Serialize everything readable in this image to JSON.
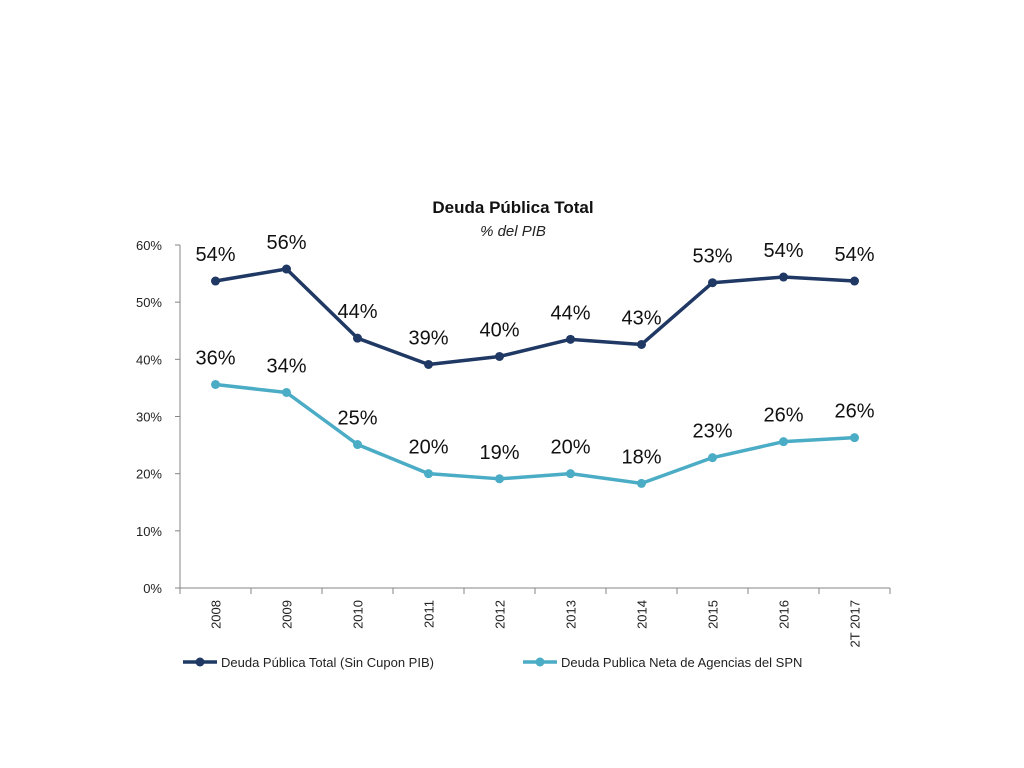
{
  "chart_data": {
    "type": "line",
    "title": "Deuda Pública Total",
    "subtitle": "% del PIB",
    "categories": [
      "2008",
      "2009",
      "2010",
      "2011",
      "2012",
      "2013",
      "2014",
      "2015",
      "2016",
      "2T 2017"
    ],
    "y_ticks": [
      "0%",
      "10%",
      "20%",
      "30%",
      "40%",
      "50%",
      "60%"
    ],
    "ylim": [
      0,
      60
    ],
    "grid": false,
    "legend_position": "bottom",
    "series": [
      {
        "name": "Deuda Pública Total (Sin Cupon PIB)",
        "color": "#1f3864",
        "values": [
          53.7,
          55.8,
          43.7,
          39.1,
          40.5,
          43.5,
          42.6,
          53.4,
          54.4,
          53.7
        ],
        "labels": [
          "54%",
          "56%",
          "44%",
          "39%",
          "40%",
          "44%",
          "43%",
          "53%",
          "54%",
          "54%"
        ]
      },
      {
        "name": "Deuda Publica Neta de Agencias del SPN",
        "color": "#4bacc6",
        "values": [
          35.6,
          34.2,
          25.1,
          20.0,
          19.1,
          20.0,
          18.3,
          22.8,
          25.6,
          26.3
        ],
        "labels": [
          "36%",
          "34%",
          "25%",
          "20%",
          "19%",
          "20%",
          "18%",
          "23%",
          "26%",
          "26%"
        ]
      }
    ]
  }
}
